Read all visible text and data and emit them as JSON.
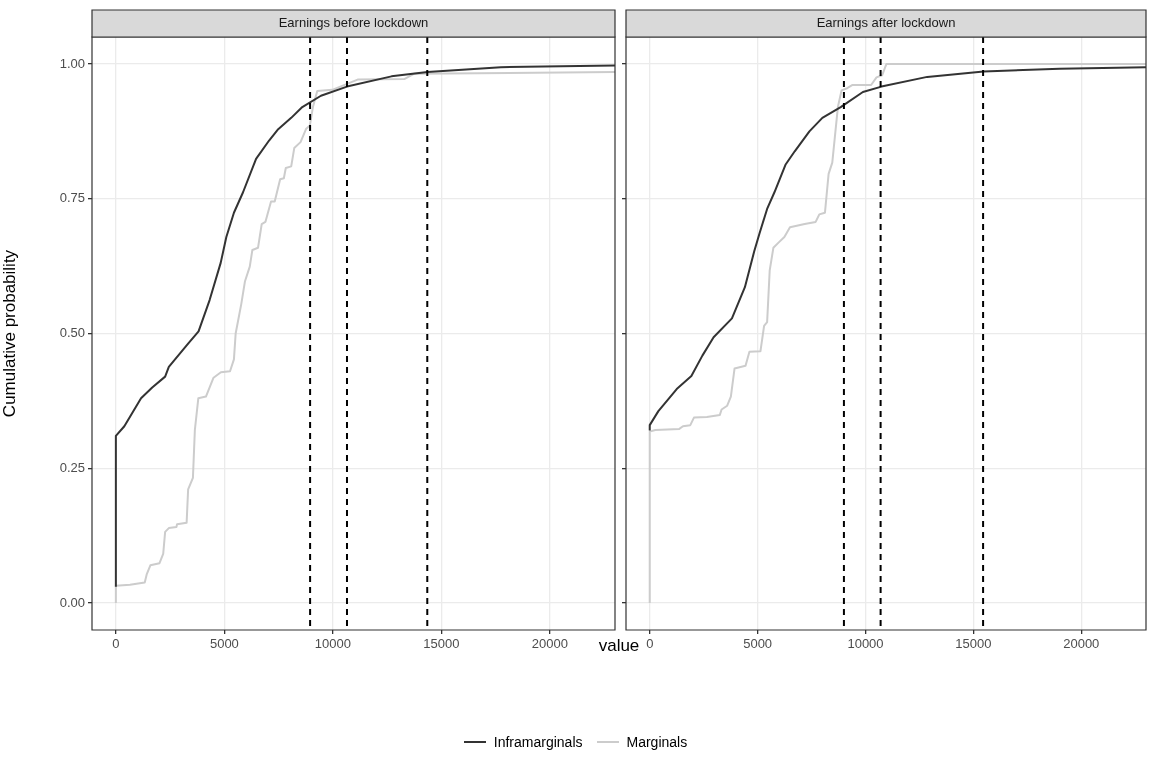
{
  "chart_data": [
    {
      "type": "line",
      "title": "Earnings before lockdown",
      "xlabel": "value",
      "ylabel": "Cumulative probability",
      "legend": "bottom",
      "grid": true,
      "xlim": [
        -1100,
        23000
      ],
      "ylim": [
        -0.05,
        1.05
      ],
      "xticks": [
        0,
        5000,
        10000,
        15000,
        20000
      ],
      "yticks": [
        {
          "value": 0,
          "label": "0.00"
        },
        {
          "value": 0.25,
          "label": "0.25"
        },
        {
          "value": 0.5,
          "label": "0.50"
        },
        {
          "value": 0.75,
          "label": "0.75"
        },
        {
          "value": 1,
          "label": "1.00"
        }
      ],
      "ref_lines": [
        {
          "axis": "x",
          "value": 8950,
          "line_style": "dashed",
          "color": "#000000"
        },
        {
          "axis": "x",
          "value": 10650,
          "line_style": "dashed",
          "color": "#000000"
        },
        {
          "axis": "x",
          "value": 14350,
          "line_style": "dashed",
          "color": "#000000"
        }
      ],
      "series": [
        {
          "name": "Inframarginals",
          "color": "#333333",
          "x": [
            0,
            0,
            390,
            1160,
            1675,
            2270,
            2440,
            3300,
            3810,
            4320,
            4830,
            5090,
            5440,
            5860,
            6460,
            7060,
            7480,
            8080,
            8590,
            9450,
            10650,
            12700,
            14360,
            17740,
            23000
          ],
          "values": [
            0.03,
            0.31,
            0.328,
            0.38,
            0.4,
            0.42,
            0.438,
            0.48,
            0.504,
            0.562,
            0.631,
            0.679,
            0.724,
            0.762,
            0.824,
            0.858,
            0.879,
            0.9,
            0.92,
            0.941,
            0.958,
            0.977,
            0.985,
            0.994,
            0.997
          ]
        },
        {
          "name": "Marginals",
          "color": "#cccccc",
          "x": [
            0,
            0,
            650,
            1330,
            1420,
            1590,
            2010,
            2180,
            2270,
            2440,
            2790,
            2820,
            3260,
            3330,
            3550,
            3640,
            3800,
            4150,
            4500,
            4840,
            5260,
            5440,
            5520,
            5780,
            5950,
            6170,
            6290,
            6550,
            6720,
            6890,
            7150,
            7320,
            7570,
            7740,
            7830,
            8080,
            8220,
            8510,
            8770,
            8940,
            9080,
            9280,
            9970,
            11140,
            13290,
            13750,
            23000
          ],
          "values": [
            0,
            0.032,
            0.034,
            0.038,
            0.053,
            0.07,
            0.074,
            0.091,
            0.132,
            0.139,
            0.141,
            0.146,
            0.149,
            0.211,
            0.232,
            0.321,
            0.38,
            0.383,
            0.418,
            0.428,
            0.43,
            0.452,
            0.5,
            0.555,
            0.597,
            0.624,
            0.655,
            0.659,
            0.703,
            0.707,
            0.745,
            0.745,
            0.786,
            0.788,
            0.807,
            0.81,
            0.844,
            0.855,
            0.88,
            0.886,
            0.92,
            0.95,
            0.952,
            0.971,
            0.972,
            0.982,
            0.985
          ]
        }
      ]
    },
    {
      "type": "line",
      "title": "Earnings after lockdown",
      "grid": true,
      "tick_labels": "x",
      "xlim": [
        -1100,
        23000
      ],
      "ylim": [
        -0.05,
        1.05
      ],
      "xticks": [
        0,
        5000,
        10000,
        15000,
        20000
      ],
      "yticks": [
        {
          "value": 0,
          "label": null
        },
        {
          "value": 0.25,
          "label": null
        },
        {
          "value": 0.5,
          "label": null
        },
        {
          "value": 0.75,
          "label": null
        },
        {
          "value": 1,
          "label": null
        }
      ],
      "ref_lines": [
        {
          "axis": "x",
          "value": 9000,
          "line_style": "dashed",
          "color": "#000000"
        },
        {
          "axis": "x",
          "value": 10700,
          "line_style": "dashed",
          "color": "#000000"
        },
        {
          "axis": "x",
          "value": 15450,
          "line_style": "dashed",
          "color": "#000000"
        }
      ],
      "series": [
        {
          "color": "#333333",
          "x": [
            0,
            0,
            400,
            1250,
            1930,
            2440,
            2960,
            3810,
            4410,
            4840,
            5090,
            5440,
            5780,
            6290,
            6720,
            7400,
            8000,
            8850,
            9880,
            10740,
            12860,
            15470,
            19000,
            23000
          ],
          "values": [
            0.32,
            0.33,
            0.356,
            0.397,
            0.421,
            0.459,
            0.493,
            0.528,
            0.586,
            0.652,
            0.686,
            0.731,
            0.762,
            0.813,
            0.838,
            0.875,
            0.9,
            0.92,
            0.948,
            0.958,
            0.976,
            0.986,
            0.991,
            0.994
          ]
        },
        {
          "color": "#cccccc",
          "x": [
            0,
            0,
            260,
            1370,
            1540,
            1880,
            2050,
            2650,
            3250,
            3330,
            3590,
            3760,
            3930,
            4440,
            4620,
            5130,
            5300,
            5440,
            5560,
            5730,
            5980,
            6240,
            6500,
            7180,
            7690,
            7860,
            8120,
            8290,
            8460,
            8720,
            8890,
            9150,
            9400,
            10260,
            10510,
            10770,
            10970,
            23000
          ],
          "values": [
            0,
            0.318,
            0.321,
            0.323,
            0.328,
            0.33,
            0.344,
            0.345,
            0.349,
            0.359,
            0.366,
            0.383,
            0.435,
            0.44,
            0.466,
            0.467,
            0.514,
            0.521,
            0.617,
            0.659,
            0.669,
            0.679,
            0.697,
            0.703,
            0.707,
            0.721,
            0.724,
            0.796,
            0.817,
            0.92,
            0.951,
            0.955,
            0.961,
            0.961,
            0.975,
            0.979,
            1.0,
            1.0
          ]
        }
      ]
    }
  ]
}
